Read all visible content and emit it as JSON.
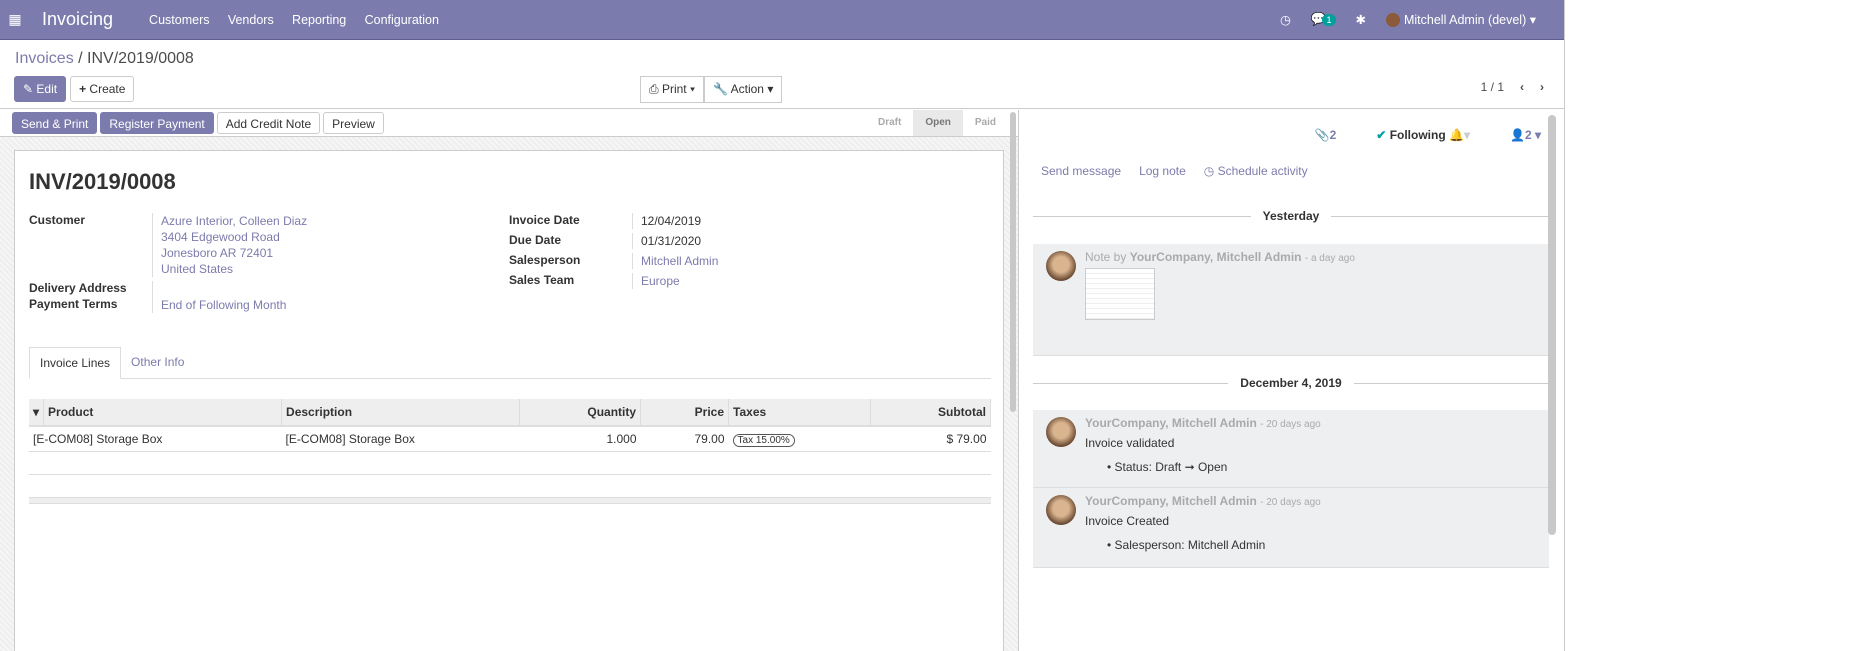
{
  "nav": {
    "app": "Invoicing",
    "menu": [
      "Customers",
      "Vendors",
      "Reporting",
      "Configuration"
    ],
    "chat_badge": "1",
    "user": "Mitchell Admin (devel)",
    "brand_color": "#7c7bad"
  },
  "cp": {
    "breadcrumb_parent": "Invoices",
    "breadcrumb_current": "INV/2019/0008",
    "edit": "Edit",
    "create": "Create",
    "print": "Print",
    "action": "Action",
    "pager": "1 / 1"
  },
  "statusbar": {
    "buttons": [
      "Send & Print",
      "Register Payment",
      "Add Credit Note",
      "Preview"
    ],
    "stages": [
      "Draft",
      "Open",
      "Paid"
    ],
    "current": "Open"
  },
  "invoice": {
    "title": "INV/2019/0008",
    "customer_label": "Customer",
    "customer": [
      "Azure Interior, Colleen Diaz",
      "3404 Edgewood Road",
      "Jonesboro AR 72401",
      "United States"
    ],
    "delivery_label": "Delivery Address",
    "terms_label": "Payment Terms",
    "terms": "End of Following Month",
    "right": [
      {
        "label": "Invoice Date",
        "value": "12/04/2019"
      },
      {
        "label": "Due Date",
        "value": "01/31/2020"
      },
      {
        "label": "Salesperson",
        "value": "Mitchell Admin"
      },
      {
        "label": "Sales Team",
        "value": "Europe"
      }
    ],
    "tabs": [
      "Invoice Lines",
      "Other Info"
    ],
    "columns": [
      "Product",
      "Description",
      "Quantity",
      "Price",
      "Taxes",
      "Subtotal"
    ],
    "lines": [
      {
        "product": "[E-COM08] Storage Box",
        "description": "[E-COM08] Storage Box",
        "quantity": "1.000",
        "price": "79.00",
        "tax": "Tax 15.00%",
        "subtotal": "$ 79.00"
      }
    ]
  },
  "chatter": {
    "attachments": "2",
    "following": "Following",
    "followers": "2",
    "send_message": "Send message",
    "log_note": "Log note",
    "schedule": "Schedule activity",
    "sep1": "Yesterday",
    "sep2": "December 4, 2019",
    "m1": {
      "prefix": "Note by",
      "author": "YourCompany, Mitchell Admin",
      "ago": "- a day ago"
    },
    "m2": {
      "author": "YourCompany, Mitchell Admin",
      "ago": "- 20 days ago",
      "body": "Invoice validated",
      "track": "Status: Draft ➞ Open"
    },
    "m3": {
      "author": "YourCompany, Mitchell Admin",
      "ago": "- 20 days ago",
      "body": "Invoice Created",
      "track": "Salesperson: Mitchell Admin"
    }
  }
}
